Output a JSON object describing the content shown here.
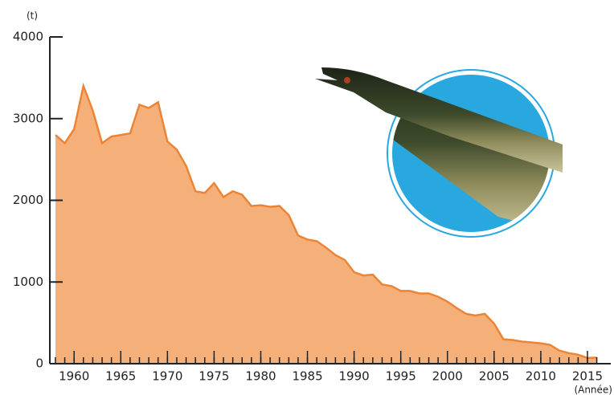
{
  "chart_data": {
    "type": "area",
    "y_unit": "(t)",
    "x_unit": "(Année)",
    "x": [
      1958,
      1959,
      1960,
      1961,
      1962,
      1963,
      1964,
      1965,
      1966,
      1967,
      1968,
      1969,
      1970,
      1971,
      1972,
      1973,
      1974,
      1975,
      1976,
      1977,
      1978,
      1979,
      1980,
      1981,
      1982,
      1983,
      1984,
      1985,
      1986,
      1987,
      1988,
      1989,
      1990,
      1991,
      1992,
      1993,
      1994,
      1995,
      1996,
      1997,
      1998,
      1999,
      2000,
      2001,
      2002,
      2003,
      2004,
      2005,
      2006,
      2007,
      2008,
      2009,
      2010,
      2011,
      2012,
      2013,
      2014,
      2015,
      2016
    ],
    "values": [
      2800,
      2700,
      2870,
      3400,
      3100,
      2700,
      2780,
      2800,
      2820,
      3170,
      3130,
      3200,
      2720,
      2620,
      2420,
      2110,
      2090,
      2210,
      2040,
      2110,
      2070,
      1930,
      1940,
      1920,
      1930,
      1820,
      1570,
      1520,
      1500,
      1420,
      1330,
      1270,
      1120,
      1080,
      1090,
      970,
      950,
      890,
      890,
      860,
      860,
      820,
      760,
      680,
      610,
      590,
      610,
      490,
      300,
      290,
      270,
      260,
      250,
      230,
      160,
      130,
      110,
      70,
      75
    ],
    "color": "#f5b07a",
    "line_color": "#ec8436",
    "xlim": [
      1957.4,
      2017.5
    ],
    "xticks": [
      1960,
      1965,
      1970,
      1975,
      1980,
      1985,
      1990,
      1995,
      2000,
      2005,
      2010,
      2015
    ],
    "ylim": [
      0,
      4000
    ],
    "yticks": [
      0,
      1000,
      2000,
      3000,
      4000
    ]
  }
}
